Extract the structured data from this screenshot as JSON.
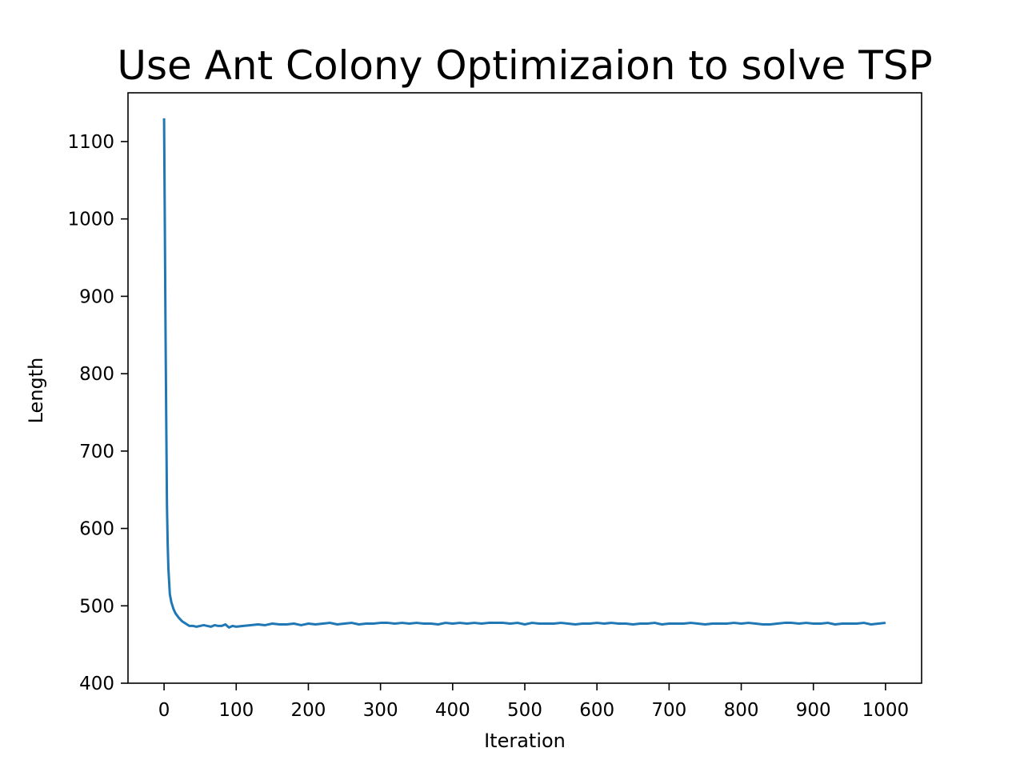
{
  "chart_data": {
    "type": "line",
    "title": "Use Ant Colony Optimizaion to solve TSP",
    "xlabel": "Iteration",
    "ylabel": "Length",
    "xlim": [
      -50,
      1050
    ],
    "ylim": [
      400,
      1163
    ],
    "xticks": [
      0,
      100,
      200,
      300,
      400,
      500,
      600,
      700,
      800,
      900,
      1000
    ],
    "yticks": [
      400,
      500,
      600,
      700,
      800,
      900,
      1000,
      1100
    ],
    "grid": false,
    "legend": "none",
    "colors": {
      "line": "#1f77b4",
      "axes": "#000000",
      "background": "#ffffff"
    },
    "series": [
      {
        "x": [
          0,
          1,
          2,
          3,
          4,
          5,
          6,
          8,
          10,
          13,
          16,
          20,
          25,
          30,
          35,
          40,
          45,
          50,
          55,
          60,
          65,
          70,
          75,
          80,
          85,
          90,
          95,
          100,
          110,
          120,
          130,
          140,
          150,
          160,
          170,
          180,
          190,
          200,
          210,
          220,
          230,
          240,
          250,
          260,
          270,
          280,
          290,
          300,
          310,
          320,
          330,
          340,
          350,
          360,
          370,
          380,
          390,
          400,
          410,
          420,
          430,
          440,
          450,
          460,
          470,
          480,
          490,
          500,
          510,
          520,
          530,
          540,
          550,
          560,
          570,
          580,
          590,
          600,
          610,
          620,
          630,
          640,
          650,
          660,
          670,
          680,
          690,
          700,
          710,
          720,
          730,
          740,
          750,
          760,
          770,
          780,
          790,
          800,
          810,
          820,
          830,
          840,
          850,
          860,
          870,
          880,
          890,
          900,
          910,
          920,
          930,
          940,
          950,
          960,
          970,
          980,
          990,
          1000
        ],
        "y": [
          1130,
          1000,
          860,
          740,
          630,
          580,
          548,
          515,
          505,
          496,
          490,
          485,
          480,
          477,
          474,
          474,
          473,
          474,
          475,
          474,
          473,
          475,
          474,
          474,
          476,
          472,
          474,
          473,
          474,
          475,
          476,
          475,
          477,
          476,
          476,
          477,
          475,
          477,
          476,
          477,
          478,
          476,
          477,
          478,
          476,
          477,
          477,
          478,
          478,
          477,
          478,
          477,
          478,
          477,
          477,
          476,
          478,
          477,
          478,
          477,
          478,
          477,
          478,
          478,
          478,
          477,
          478,
          476,
          478,
          477,
          477,
          477,
          478,
          477,
          476,
          477,
          477,
          478,
          477,
          478,
          477,
          477,
          476,
          477,
          477,
          478,
          476,
          477,
          477,
          477,
          478,
          477,
          476,
          477,
          477,
          477,
          478,
          477,
          478,
          477,
          476,
          476,
          477,
          478,
          478,
          477,
          478,
          477,
          477,
          478,
          476,
          477,
          477,
          477,
          478,
          476,
          477,
          478
        ]
      }
    ]
  }
}
